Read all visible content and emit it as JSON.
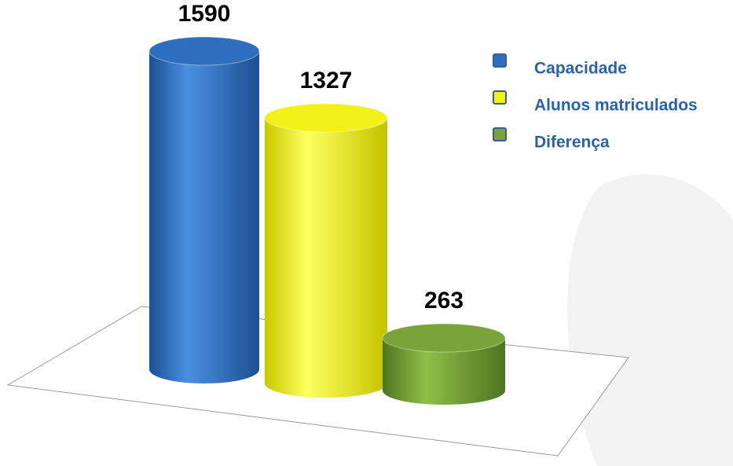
{
  "chart_data": {
    "type": "bar3d",
    "series": [
      {
        "name": "Capacidade",
        "color": "#2f6fc0",
        "values": [
          1590
        ]
      },
      {
        "name": "Alunos matriculados",
        "color": "#f2f21a",
        "values": [
          1327
        ]
      },
      {
        "name": "Diferença",
        "color": "#7aa43a",
        "values": [
          263
        ]
      }
    ]
  }
}
